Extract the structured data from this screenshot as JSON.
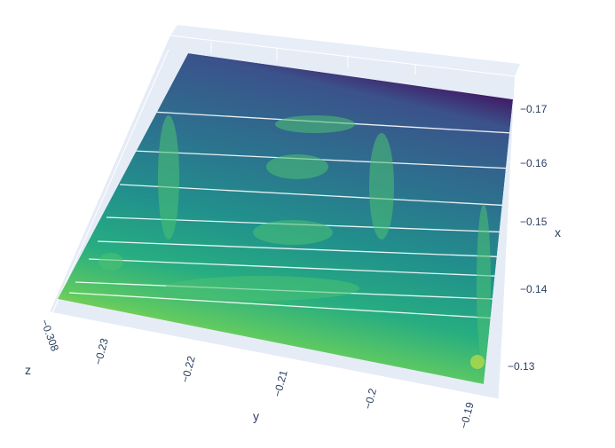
{
  "chart_data": {
    "type": "surface",
    "colorscale": "Viridis",
    "axes": {
      "x": {
        "label": "x",
        "ticks": [
          "−0.17",
          "−0.16",
          "−0.15",
          "−0.14",
          "−0.13"
        ],
        "range": [
          -0.172,
          -0.128
        ]
      },
      "y": {
        "label": "y",
        "ticks": [
          "−0.23",
          "−0.22",
          "−0.21",
          "−0.2",
          "−0.19"
        ],
        "range": [
          -0.234,
          -0.188
        ]
      },
      "z": {
        "label": "z",
        "ticks": [
          "−0.308"
        ]
      }
    },
    "background_color": "#e5ecf6",
    "grid": true
  }
}
